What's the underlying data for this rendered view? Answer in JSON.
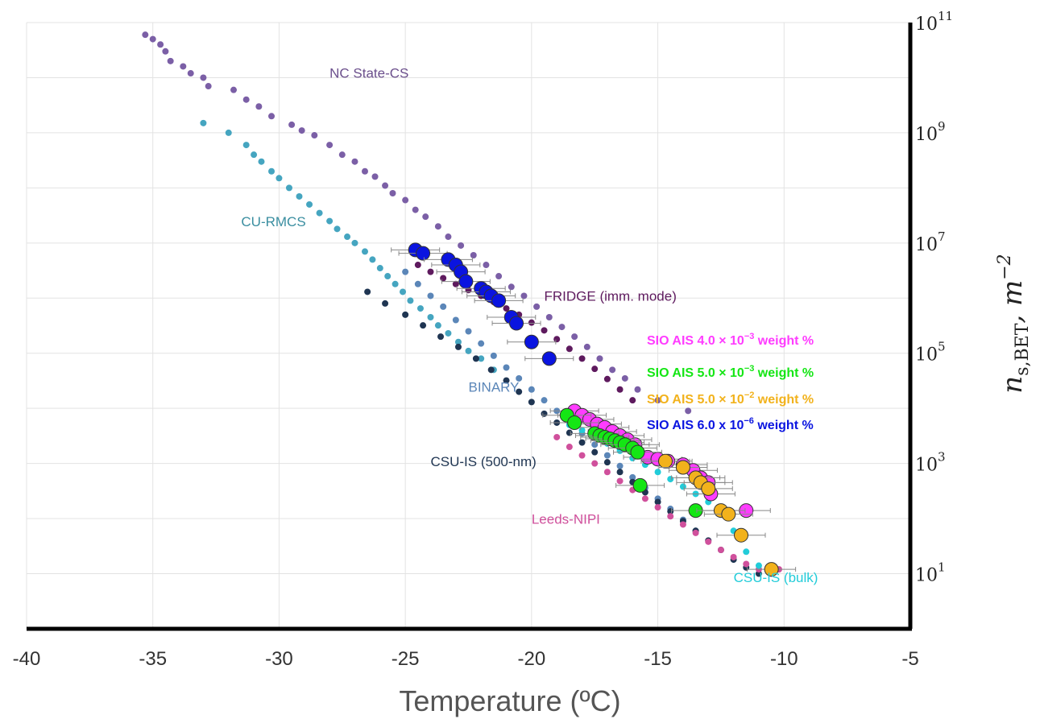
{
  "chart_data": {
    "type": "scatter",
    "title": "",
    "xlabel": "Temperature (ºC)",
    "ylabel": "n_{s,BET}, m^{-2}",
    "ylabel_parts": {
      "main": "n",
      "sub": "s,BET",
      "unit": ", m",
      "sup": "−2"
    },
    "xlim": [
      -40,
      -5
    ],
    "ylim_log10": [
      0,
      11
    ],
    "y_scale": "log",
    "x_ticks": [
      "-40",
      "-35",
      "-30",
      "-25",
      "-20",
      "-15",
      "-10",
      "-5"
    ],
    "y_ticks": [
      {
        "base": "10",
        "exp": "1"
      },
      {
        "base": "10",
        "exp": "3"
      },
      {
        "base": "10",
        "exp": "5"
      },
      {
        "base": "10",
        "exp": "7"
      },
      {
        "base": "10",
        "exp": "9"
      },
      {
        "base": "10",
        "exp": "11"
      }
    ],
    "grid": true,
    "y_axis_position": "right",
    "annotations": [
      {
        "text": "NC State-CS",
        "x": -28,
        "y": 10000000000.0,
        "color": "#6b4f8c"
      },
      {
        "text": "CU-RMCS",
        "x": -31.5,
        "y": 20000000.0,
        "color": "#3a8ea0"
      },
      {
        "text": "FRIDGE (imm. mode)",
        "x": -19.5,
        "y": 900000.0,
        "color": "#5e1a5e"
      },
      {
        "text": "BINARY",
        "x": -22.5,
        "y": 20000.0,
        "color": "#5b86b8"
      },
      {
        "text": "CSU-IS (500-nm)",
        "x": -24,
        "y": 900,
        "color": "#1f3552"
      },
      {
        "text": "Leeds-NIPI",
        "x": -20,
        "y": 80,
        "color": "#d0509c"
      },
      {
        "text": "CSU-IS (bulk)",
        "x": -12,
        "y": 7,
        "color": "#22ccd9"
      }
    ],
    "legend": {
      "placement": "right",
      "entries": [
        {
          "prefix": "SIO AIS 4.0 × 10",
          "exp": "−3",
          "suffix": " weight %",
          "color": "#ff3cff"
        },
        {
          "prefix": "SIO AIS 5.0 × 10",
          "exp": "−3",
          "suffix": " weight %",
          "color": "#14e614"
        },
        {
          "prefix": "SIO AIS 5.0 × 10",
          "exp": "−2",
          "suffix": " weight %",
          "color": "#f2b21c"
        },
        {
          "prefix": "SIO AIS  6.0 x 10",
          "exp": "−6",
          "suffix": " weight %",
          "color": "#0a14e0"
        }
      ]
    },
    "series": [
      {
        "name": "NC State-CS",
        "color": "#7b5fa6",
        "marker": "small",
        "x": [
          -35.3,
          -35.0,
          -34.7,
          -34.5,
          -34.3,
          -33.8,
          -33.5,
          -33.0,
          -32.8,
          -31.8,
          -31.3,
          -30.8,
          -30.3,
          -29.5,
          -29.1,
          -28.6,
          -28.0,
          -27.5,
          -27.0,
          -26.6,
          -26.2,
          -25.8,
          -25.5,
          -25.0,
          -24.6,
          -24.2,
          -23.7,
          -23.3,
          -22.8,
          -22.3,
          -21.8,
          -21.3,
          -20.8,
          -20.3,
          -19.8,
          -19.3,
          -18.8,
          -18.3,
          -17.8,
          -17.3,
          -16.8,
          -16.3,
          -15.8,
          -15.0,
          -13.8
        ],
        "y": [
          60000000000.0,
          50000000000.0,
          40000000000.0,
          30000000000.0,
          20000000000.0,
          16000000000.0,
          12000000000.0,
          10000000000.0,
          7000000000.0,
          6000000000.0,
          4000000000.0,
          3000000000.0,
          2000000000.0,
          1400000000.0,
          1100000000.0,
          900000000.0,
          600000000.0,
          400000000.0,
          300000000.0,
          200000000.0,
          160000000.0,
          110000000.0,
          80000000.0,
          60000000.0,
          40000000.0,
          30000000.0,
          20000000.0,
          13000000.0,
          9000000.0,
          6000000.0,
          4000000.0,
          2500000.0,
          1600000.0,
          1100000.0,
          700000.0,
          450000.0,
          300000.0,
          200000.0,
          130000.0,
          80000.0,
          50000.0,
          35000.0,
          22000.0,
          14000.0,
          9000.0
        ]
      },
      {
        "name": "CU-RMCS",
        "color": "#45a5c0",
        "marker": "small",
        "x": [
          -33.0,
          -32.0,
          -31.3,
          -31.0,
          -30.7,
          -30.3,
          -30.0,
          -29.6,
          -29.2,
          -28.8,
          -28.4,
          -28.0,
          -27.7,
          -27.3,
          -27.0,
          -26.6,
          -26.3,
          -26.0,
          -25.7,
          -25.4,
          -25.1,
          -24.8,
          -24.4,
          -24.0,
          -23.7,
          -23.3,
          -22.9,
          -22.5,
          -22.0,
          -21.5
        ],
        "y": [
          1500000000.0,
          1000000000.0,
          600000000.0,
          400000000.0,
          300000000.0,
          200000000.0,
          150000000.0,
          100000000.0,
          70000000.0,
          50000000.0,
          35000000.0,
          25000000.0,
          18000000.0,
          13000000.0,
          10000000.0,
          7000000.0,
          5000000.0,
          3500000.0,
          2500000.0,
          1800000.0,
          1300000.0,
          900000.0,
          650000.0,
          450000.0,
          320000.0,
          230000.0,
          160000.0,
          110000.0,
          80000.0,
          50000.0
        ]
      },
      {
        "name": "FRIDGE (imm. mode)",
        "color": "#5e1a5e",
        "marker": "small",
        "x": [
          -24.5,
          -24.0,
          -23.5,
          -23.0,
          -22.5,
          -22.0,
          -21.5,
          -21.0,
          -20.5,
          -20.0,
          -19.5,
          -19.0,
          -18.5,
          -18.0,
          -17.5,
          -17.0,
          -16.5,
          -16.0
        ],
        "y": [
          4000000.0,
          3000000.0,
          2300000.0,
          1800000.0,
          1400000.0,
          1100000.0,
          850000.0,
          650000.0,
          500000.0,
          360000.0,
          260000.0,
          180000.0,
          120000.0,
          80000.0,
          52000.0,
          34000.0,
          22000.0,
          14000.0
        ]
      },
      {
        "name": "BINARY",
        "color": "#5b86b8",
        "marker": "small",
        "x": [
          -25.0,
          -24.5,
          -24.0,
          -23.5,
          -23.0,
          -22.5,
          -22.0,
          -21.5,
          -21.0,
          -20.5,
          -20.0,
          -19.5,
          -19.0,
          -18.5,
          -18.0,
          -17.5,
          -17.0,
          -16.5,
          -16.0,
          -15.5,
          -15.0,
          -14.5,
          -14.0,
          -13.5
        ],
        "y": [
          3000000.0,
          1800000.0,
          1100000.0,
          700000.0,
          400000.0,
          250000.0,
          150000.0,
          90000.0,
          55000.0,
          35000.0,
          22000.0,
          14000.0,
          9000.0,
          5500.0,
          3500.0,
          2200.0,
          1400.0,
          900,
          560,
          360,
          230,
          150,
          95,
          60
        ]
      },
      {
        "name": "CSU-IS (500-nm)",
        "color": "#1f3552",
        "marker": "small",
        "x": [
          -26.5,
          -25.8,
          -25.0,
          -24.3,
          -23.6,
          -22.9,
          -22.2,
          -21.6,
          -21.0,
          -20.5,
          -20.0,
          -19.5,
          -19.0,
          -18.5,
          -18.0,
          -17.5,
          -17.0,
          -16.5,
          -16.0,
          -15.5,
          -15.0,
          -14.5,
          -14.0,
          -13.5,
          -13.0,
          -12.5,
          -12.0,
          -11.5,
          -11.0
        ],
        "y": [
          1300000.0,
          800000.0,
          500000.0,
          320000.0,
          200000.0,
          130000.0,
          80000.0,
          50000.0,
          32000.0,
          20000.0,
          13000.0,
          8000.0,
          5500.0,
          3600.0,
          2400.0,
          1600.0,
          1050.0,
          700,
          460,
          300,
          200,
          135,
          90,
          60,
          40,
          27,
          18,
          13,
          10
        ]
      },
      {
        "name": "Leeds-NIPI",
        "color": "#d0509c",
        "marker": "small",
        "x": [
          -19.0,
          -18.5,
          -18.0,
          -17.5,
          -17.0,
          -16.5,
          -16.0,
          -15.5,
          -15.0,
          -14.5,
          -14.0,
          -13.5,
          -13.0,
          -12.5,
          -12.0,
          -11.5,
          -11.0,
          -10.5,
          -10.2
        ],
        "y": [
          3000.0,
          2000.0,
          1400.0,
          1000.0,
          700,
          480,
          330,
          230,
          160,
          110,
          78,
          55,
          38,
          27,
          20,
          15,
          12,
          10,
          12
        ]
      },
      {
        "name": "CSU-IS (bulk)",
        "color": "#22ccd9",
        "marker": "small",
        "x": [
          -18.5,
          -18.0,
          -17.5,
          -17.0,
          -16.5,
          -16.0,
          -15.5,
          -15.0,
          -14.5,
          -14.0,
          -13.5,
          -13.0,
          -12.5,
          -12.0,
          -11.5,
          -11.0,
          -10.5
        ],
        "y": [
          5000.0,
          4000.0,
          3000.0,
          2300.0,
          1700.0,
          1250.0,
          950,
          700,
          520,
          380,
          280,
          200,
          130,
          60,
          25,
          14,
          11
        ]
      },
      {
        "name": "SIO AIS 6.0 x 10^-6 weight %",
        "color": "#0a14e0",
        "marker": "large",
        "x": [
          -24.6,
          -24.3,
          -23.3,
          -23.0,
          -22.8,
          -22.6,
          -22.0,
          -21.8,
          -21.6,
          -21.3,
          -20.8,
          -20.6,
          -20.0,
          -19.3
        ],
        "y": [
          7500000.0,
          6500000.0,
          5000000.0,
          4000000.0,
          3000000.0,
          2000000.0,
          1500000.0,
          1300000.0,
          1100000.0,
          900000.0,
          450000.0,
          350000.0,
          160000.0,
          80000.0
        ]
      },
      {
        "name": "SIO AIS 4.0 x 10^-3 weight %",
        "color": "#ff3cff",
        "marker": "large",
        "x": [
          -18.3,
          -18.0,
          -17.7,
          -17.4,
          -17.1,
          -16.8,
          -16.5,
          -16.2,
          -15.9,
          -15.4,
          -15.0,
          -14.6,
          -14.0,
          -13.6,
          -13.3,
          -13.0,
          -12.9,
          -11.5
        ],
        "y": [
          9000.0,
          7500.0,
          6300.0,
          5200.0,
          4500.0,
          3800.0,
          3200.0,
          2700.0,
          2200.0,
          1300.0,
          1200.0,
          1100.0,
          950,
          750,
          550,
          450,
          280,
          140
        ]
      },
      {
        "name": "SIO AIS 5.0 x 10^-3 weight %",
        "color": "#14e614",
        "marker": "large",
        "x": [
          -18.6,
          -18.3,
          -17.5,
          -17.3,
          -17.1,
          -16.9,
          -16.7,
          -16.5,
          -16.3,
          -16.0,
          -15.8,
          -15.7,
          -13.5
        ],
        "y": [
          7500.0,
          5500.0,
          3500.0,
          3200.0,
          3000.0,
          2800.0,
          2600.0,
          2400.0,
          2200.0,
          1900.0,
          1600.0,
          400,
          140
        ]
      },
      {
        "name": "SIO AIS 5.0 x 10^-2 weight %",
        "color": "#f2b21c",
        "marker": "large",
        "x": [
          -14.7,
          -14.0,
          -13.5,
          -13.3,
          -13.0,
          -12.5,
          -12.2,
          -11.7,
          -10.5
        ],
        "y": [
          1100.0,
          850,
          550,
          450,
          350,
          140,
          120,
          50,
          12
        ]
      }
    ]
  }
}
